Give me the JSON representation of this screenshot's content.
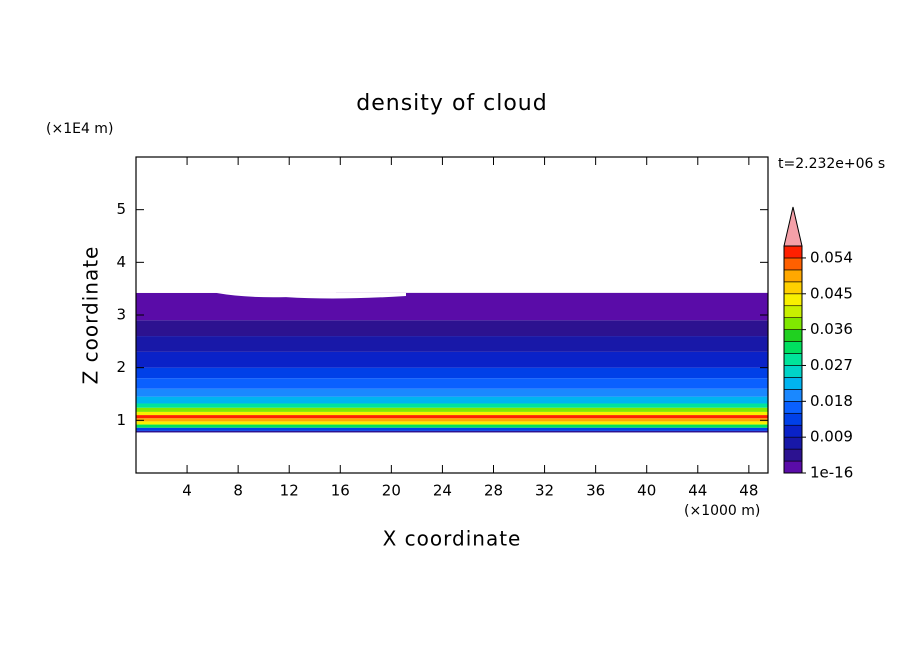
{
  "chart_data": {
    "type": "contour",
    "title": "density of cloud",
    "x_label": "X coordinate",
    "y_label": "Z coordinate",
    "x_unit": "(×1000 m)",
    "y_unit": "(×1E4 m)",
    "time_label": "t=2.232e+06 s",
    "xlim": [
      0,
      49.5
    ],
    "xticks": [
      4,
      8,
      12,
      16,
      20,
      24,
      28,
      32,
      36,
      40,
      44,
      48
    ],
    "ylim": [
      0,
      6
    ],
    "yticks": [
      1,
      2,
      3,
      4,
      5
    ],
    "z_bins": [
      0.77,
      0.8,
      0.86,
      0.92,
      0.98,
      1.04,
      1.1,
      1.16,
      1.24,
      1.32,
      1.45,
      1.6,
      1.8,
      2.0,
      2.3,
      2.6,
      2.9,
      3.42
    ],
    "values": [
      0.004,
      0.012,
      0.03,
      0.042,
      0.05,
      0.054,
      0.045,
      0.036,
      0.027,
      0.022,
      0.018,
      0.015,
      0.012,
      0.009,
      0.006,
      0.004,
      0.001
    ],
    "colorbar": {
      "lim": [
        0,
        0.057
      ],
      "colors": [
        "#5a0ca8",
        "#2c1290",
        "#1818a8",
        "#0a22c8",
        "#0040e8",
        "#0a60ff",
        "#1a88ff",
        "#00b4f0",
        "#00d4c8",
        "#00e49a",
        "#00e060",
        "#20d020",
        "#80e800",
        "#c8f000",
        "#f8f000",
        "#ffd000",
        "#ffa800",
        "#ff6000",
        "#ff2000"
      ],
      "over_color": "#f4a0a8",
      "ticks": [
        {
          "value": 1e-16,
          "label": "1e-16"
        },
        0.009,
        0.018,
        0.027,
        0.036,
        0.045,
        0.054
      ]
    }
  }
}
